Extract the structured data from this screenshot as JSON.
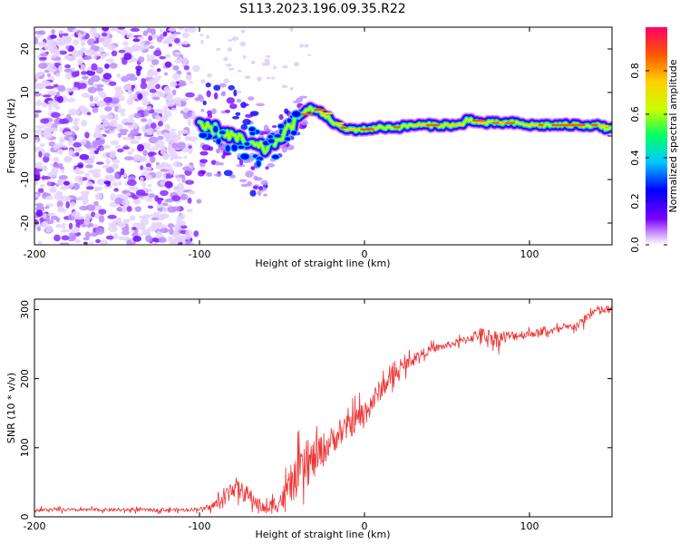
{
  "title": "S113.2023.196.09.35.R22",
  "chart_data": [
    {
      "type": "heatmap",
      "xlabel": "Height of straight line (km)",
      "ylabel": "Frequency (Hz)",
      "xlim": [
        -200,
        150
      ],
      "ylim": [
        -25,
        25
      ],
      "x_ticks": [
        -200,
        -100,
        0,
        100
      ],
      "y_ticks": [
        -20,
        -10,
        0,
        10,
        20
      ],
      "colorbar": {
        "label": "Normalized spectral amplitude",
        "range": [
          0,
          1
        ],
        "ticks": [
          "0.0",
          "0.2",
          "0.4",
          "0.6",
          "0.8"
        ],
        "colormap": [
          "#ffffff",
          "#cc99ff",
          "#7a00ff",
          "#0000ff",
          "#00c8ff",
          "#00ff66",
          "#c8ff00",
          "#ffd000",
          "#ff5a00",
          "#ff0066"
        ]
      },
      "ridge": {
        "x": [
          -100,
          -90,
          -80,
          -70,
          -60,
          -50,
          -40,
          -35,
          -30,
          -25,
          -20,
          -15,
          -10,
          0,
          10,
          20,
          30,
          40,
          50,
          60,
          62,
          70,
          80,
          90,
          100,
          110,
          120,
          130,
          140,
          150
        ],
        "frequency": [
          2,
          1.5,
          0,
          -2,
          -3,
          0,
          4,
          6.5,
          6,
          5,
          3.5,
          2,
          1.5,
          1.5,
          2,
          2,
          2.5,
          2.5,
          2.5,
          2.5,
          4,
          3,
          3,
          3,
          2.5,
          2.5,
          2.5,
          2.5,
          2.5,
          1.5
        ]
      }
    },
    {
      "type": "line",
      "xlabel": "Height of straight line (km)",
      "ylabel": "SNR (10 * v/v)",
      "xlim": [
        -200,
        150
      ],
      "ylim": [
        0,
        315
      ],
      "x_ticks": [
        -200,
        -100,
        0,
        100
      ],
      "y_ticks": [
        0,
        100,
        200,
        300
      ],
      "color": "#ee3333",
      "trend": {
        "x": [
          -200,
          -110,
          -95,
          -85,
          -80,
          -70,
          -60,
          -50,
          -40,
          -30,
          -20,
          -10,
          0,
          10,
          20,
          30,
          40,
          50,
          60,
          70,
          80,
          90,
          100,
          110,
          120,
          130,
          135,
          140,
          150
        ],
        "snr": [
          10,
          10,
          12,
          25,
          45,
          30,
          10,
          25,
          60,
          85,
          110,
          130,
          150,
          185,
          210,
          230,
          242,
          248,
          255,
          265,
          258,
          262,
          265,
          268,
          272,
          278,
          290,
          298,
          300
        ],
        "noise_amplitude": [
          5,
          5,
          6,
          25,
          30,
          25,
          15,
          35,
          60,
          60,
          40,
          35,
          40,
          30,
          22,
          15,
          12,
          10,
          12,
          18,
          25,
          15,
          12,
          10,
          10,
          12,
          15,
          15,
          12
        ]
      }
    }
  ]
}
